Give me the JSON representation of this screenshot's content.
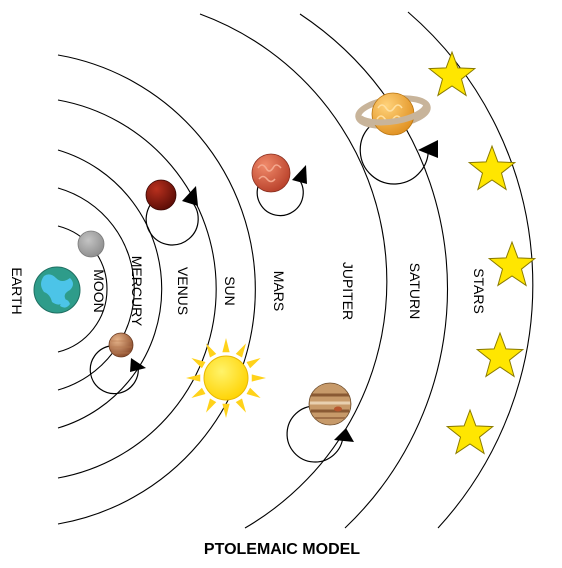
{
  "title": "PTOLEMAIC MODEL",
  "bodies": {
    "earth": {
      "label": "EARTH"
    },
    "moon": {
      "label": "MOON"
    },
    "mercury": {
      "label": "MERCURY"
    },
    "venus": {
      "label": "VENUS"
    },
    "sun": {
      "label": "SUN"
    },
    "mars": {
      "label": "MARS"
    },
    "jupiter": {
      "label": "JUPITER"
    },
    "saturn": {
      "label": "SATURN"
    },
    "stars": {
      "label": "STARS"
    }
  },
  "colors": {
    "orbit_line": "#000000",
    "earth_ocean": "#2e9c8a",
    "earth_land": "#4cc4e8",
    "moon": "#a6a6a6",
    "mercury": "#c98c5e",
    "venus": "#8b1a0f",
    "sun": "#ffe62e",
    "sun_rays": "#ffd21a",
    "mars": "#e06a4c",
    "jupiter": "#c79a6a",
    "saturn": "#f5b24a",
    "saturn_ring": "#c8b49a",
    "star_fill": "#ffe600",
    "star_stroke": "#8a7a00"
  },
  "icons": {
    "earth": "earth-icon",
    "moon": "moon-icon",
    "mercury": "mercury-icon",
    "venus": "venus-icon",
    "sun": "sun-icon",
    "mars": "mars-icon",
    "jupiter": "jupiter-icon",
    "saturn": "saturn-icon",
    "star": "star-icon",
    "epicycle_arrow": "epicycle-arrow-icon"
  }
}
